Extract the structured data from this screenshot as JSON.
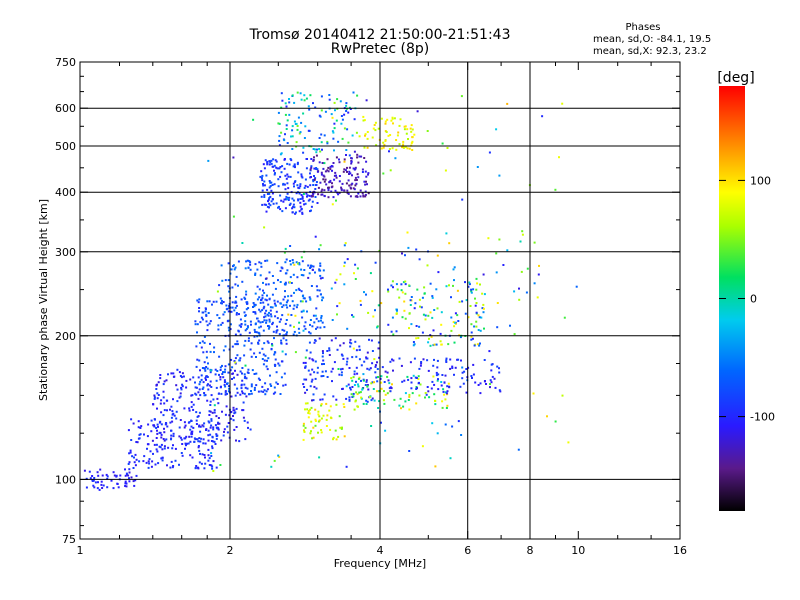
{
  "chart_data": {
    "type": "scatter",
    "title": "Tromsø 20140412 21:50:00-21:51:43",
    "subtitle": "RwPretec (8p)",
    "stats": {
      "heading": "Phases",
      "line_o": "mean, sd,O: -84.1, 19.5",
      "line_x": "mean, sd,X:  92.3, 23.2"
    },
    "xlabel": "Frequency [MHz]",
    "ylabel": "Stationary phase Virtual Height [km]",
    "x_scale": "log",
    "y_scale": "log",
    "xlim": [
      1,
      16
    ],
    "ylim": [
      75,
      750
    ],
    "x_ticks": [
      1,
      2,
      4,
      6,
      8,
      10,
      16
    ],
    "y_ticks": [
      75,
      100,
      200,
      300,
      400,
      500,
      600,
      750
    ],
    "x_gridlines": [
      2,
      4,
      6,
      8
    ],
    "y_gridlines": [
      100,
      200,
      300,
      400,
      500,
      600
    ],
    "grid": true,
    "colorbar": {
      "label": "[deg]",
      "range": [
        -180,
        180
      ],
      "ticks": [
        100,
        0,
        -100
      ]
    },
    "clusters": [
      {
        "f": [
          1.0,
          1.3
        ],
        "h": [
          95,
          105
        ],
        "phase": [
          -120,
          -90
        ],
        "n": 60
      },
      {
        "f": [
          1.25,
          1.9
        ],
        "h": [
          105,
          135
        ],
        "phase": [
          -115,
          -80
        ],
        "n": 190
      },
      {
        "f": [
          1.4,
          2.2
        ],
        "h": [
          120,
          170
        ],
        "phase": [
          -120,
          -80
        ],
        "n": 220
      },
      {
        "f": [
          1.7,
          2.6
        ],
        "h": [
          150,
          240
        ],
        "phase": [
          -100,
          -60
        ],
        "n": 320
      },
      {
        "f": [
          1.9,
          3.1
        ],
        "h": [
          200,
          290
        ],
        "phase": [
          -90,
          -50
        ],
        "n": 230
      },
      {
        "f": [
          2.3,
          3.0
        ],
        "h": [
          360,
          470
        ],
        "phase": [
          -110,
          -70
        ],
        "n": 200
      },
      {
        "f": [
          2.9,
          3.8
        ],
        "h": [
          390,
          480
        ],
        "phase": [
          -150,
          -110
        ],
        "n": 150
      },
      {
        "f": [
          2.5,
          3.6
        ],
        "h": [
          480,
          650
        ],
        "phase": [
          -110,
          60
        ],
        "n": 120
      },
      {
        "f": [
          3.7,
          4.7
        ],
        "h": [
          490,
          580
        ],
        "phase": [
          60,
          110
        ],
        "n": 70
      },
      {
        "f": [
          2.8,
          3.4
        ],
        "h": [
          120,
          145
        ],
        "phase": [
          40,
          110
        ],
        "n": 60
      },
      {
        "f": [
          2.8,
          4.0
        ],
        "h": [
          145,
          200
        ],
        "phase": [
          -120,
          -70
        ],
        "n": 140
      },
      {
        "f": [
          3.5,
          5.5
        ],
        "h": [
          140,
          165
        ],
        "phase": [
          -20,
          110
        ],
        "n": 90
      },
      {
        "f": [
          4.0,
          7.0
        ],
        "h": [
          150,
          180
        ],
        "phase": [
          -120,
          -80
        ],
        "n": 110
      },
      {
        "f": [
          4.2,
          6.5
        ],
        "h": [
          190,
          260
        ],
        "phase": [
          -110,
          110
        ],
        "n": 120
      },
      {
        "f": [
          2.5,
          8.5
        ],
        "h": [
          200,
          320
        ],
        "phase": [
          -120,
          110
        ],
        "n": 120
      },
      {
        "f": [
          1.8,
          10.0
        ],
        "h": [
          100,
          650
        ],
        "phase": [
          -130,
          120
        ],
        "n": 130
      }
    ]
  }
}
